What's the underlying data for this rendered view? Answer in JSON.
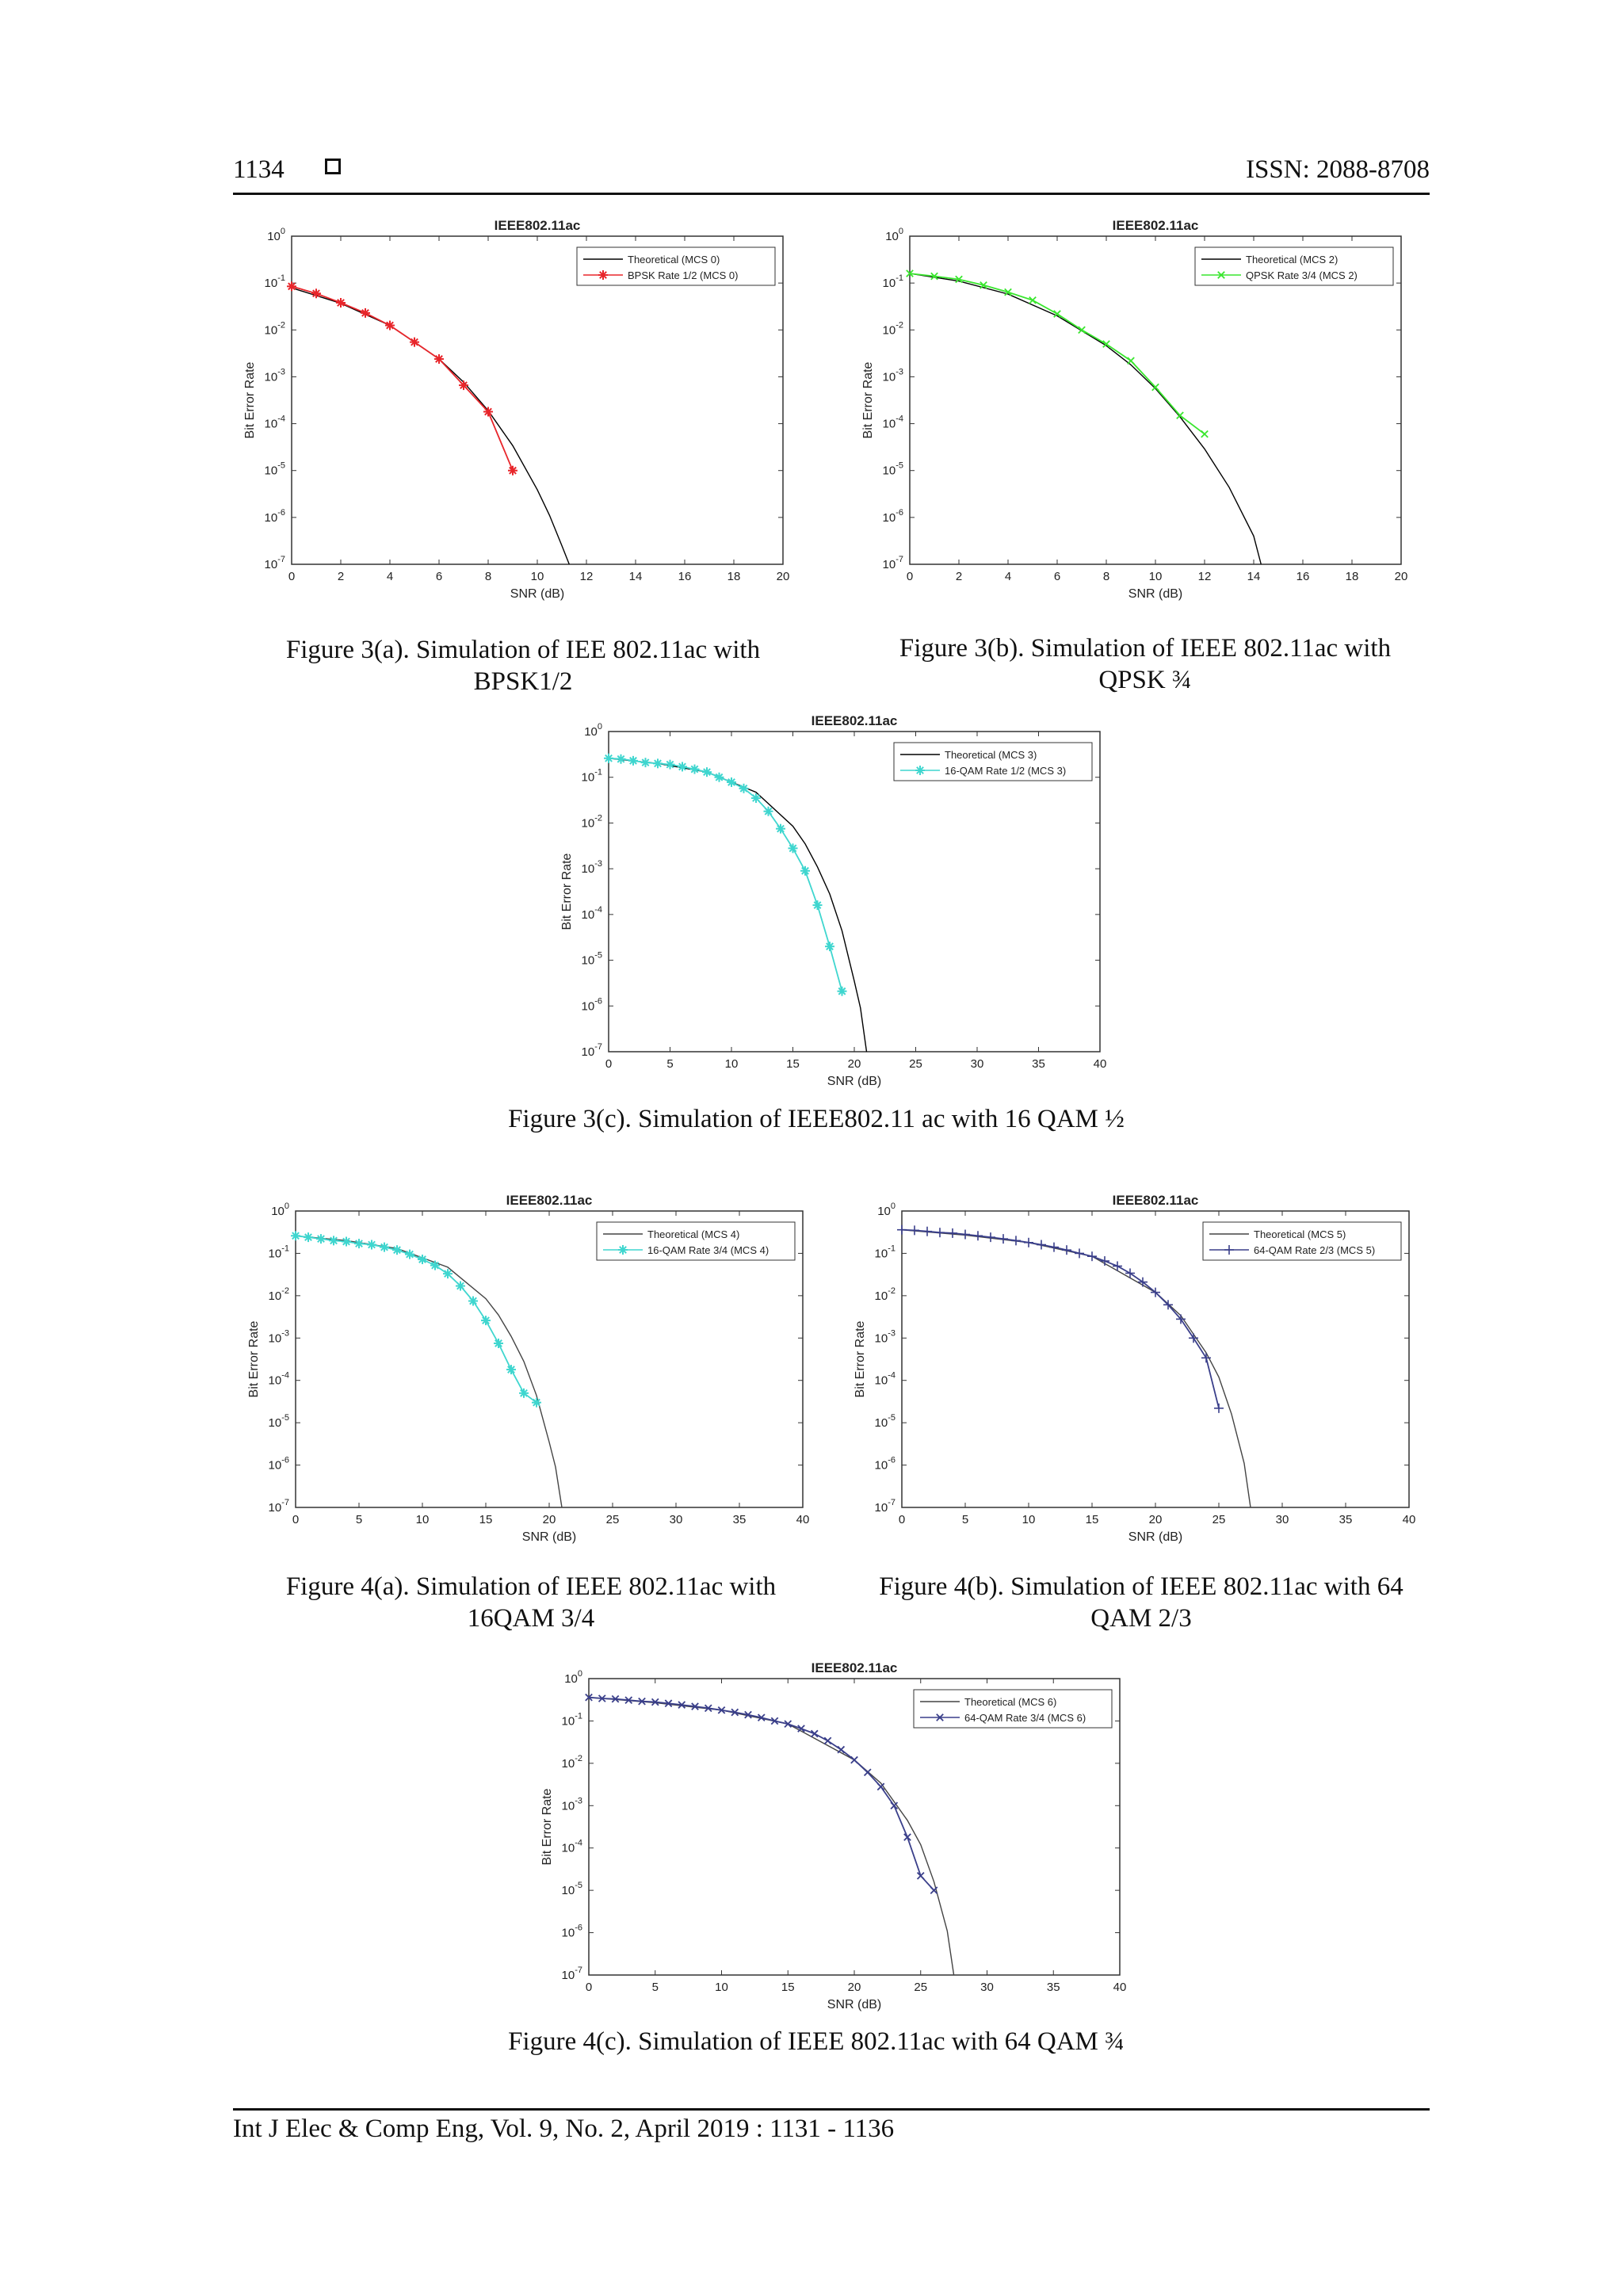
{
  "header": {
    "page_number": "1134",
    "issn": "ISSN: 2088-8708"
  },
  "footer": {
    "citation": "Int J Elec & Comp Eng, Vol. 9, No. 2, April 2019 :  1131 - 1136"
  },
  "captions": {
    "fig3a": "Figure 3(a). Simulation of IEE 802.11ac with BPSK1/2",
    "fig3b": "Figure 3(b). Simulation of IEEE 802.11ac with QPSK ¾",
    "fig3c": "Figure 3(c). Simulation of IEEE802.11 ac with 16 QAM ½",
    "fig4a": "Figure 4(a). Simulation of IEEE 802.11ac with 16QAM 3/4",
    "fig4b": "Figure 4(b). Simulation of IEEE 802.11ac with 64 QAM 2/3",
    "fig4c": "Figure 4(c). Simulation of IEEE 802.11ac with 64 QAM ¾"
  },
  "chart_data": [
    {
      "id": "fig3a",
      "type": "line",
      "title": "IEEE802.11ac",
      "xlabel": "SNR (dB)",
      "ylabel": "Bit Error Rate",
      "xlim": [
        0,
        20
      ],
      "ylim_exp": [
        -7,
        0
      ],
      "yscale": "log",
      "xticks": [
        0,
        2,
        4,
        6,
        8,
        10,
        12,
        14,
        16,
        18,
        20
      ],
      "yticks": [
        "10^0",
        "10^-1",
        "10^-2",
        "10^-3",
        "10^-4",
        "10^-5",
        "10^-6",
        "10^-7"
      ],
      "legend_position": "top-right",
      "series": [
        {
          "name": "Theoretical (MCS 0)",
          "color": "#000000",
          "marker": "none",
          "x": [
            0,
            2,
            4,
            6,
            7,
            8,
            9,
            10,
            10.5,
            11,
            11.3
          ],
          "y": [
            0.079,
            0.037,
            0.0125,
            0.0024,
            0.00077,
            0.00019,
            3.4e-05,
            3.9e-06,
            1.1e-06,
            2.5e-07,
            1e-07
          ]
        },
        {
          "name": "BPSK Rate 1/2 (MCS 0)",
          "color": "#e8262b",
          "marker": "star",
          "x": [
            0,
            1,
            2,
            3,
            4,
            5,
            6,
            7,
            8,
            9
          ],
          "y": [
            0.085,
            0.06,
            0.038,
            0.023,
            0.0125,
            0.0055,
            0.0024,
            0.00066,
            0.00018,
            1e-05
          ]
        }
      ]
    },
    {
      "id": "fig3b",
      "type": "line",
      "title": "IEEE802.11ac",
      "xlabel": "SNR (dB)",
      "ylabel": "Bit Error Rate",
      "xlim": [
        0,
        20
      ],
      "ylim_exp": [
        -7,
        0
      ],
      "yscale": "log",
      "xticks": [
        0,
        2,
        4,
        6,
        8,
        10,
        12,
        14,
        16,
        18,
        20
      ],
      "yticks": [
        "10^0",
        "10^-1",
        "10^-2",
        "10^-3",
        "10^-4",
        "10^-5",
        "10^-6",
        "10^-7"
      ],
      "legend_position": "top-right",
      "series": [
        {
          "name": "Theoretical (MCS 2)",
          "color": "#000000",
          "marker": "none",
          "x": [
            0,
            2,
            4,
            6,
            8,
            9,
            10,
            11,
            12,
            13,
            14,
            14.3
          ],
          "y": [
            0.16,
            0.11,
            0.058,
            0.02,
            0.0046,
            0.0018,
            0.00056,
            0.00014,
            2.9e-05,
            4.4e-06,
            4e-07,
            1e-07
          ]
        },
        {
          "name": "QPSK Rate 3/4 (MCS 2)",
          "color": "#39e62e",
          "marker": "x",
          "x": [
            0,
            1,
            2,
            3,
            4,
            5,
            6,
            7,
            8,
            9,
            10,
            11,
            12
          ],
          "y": [
            0.16,
            0.14,
            0.12,
            0.09,
            0.064,
            0.043,
            0.022,
            0.01,
            0.005,
            0.0022,
            0.0006,
            0.00015,
            6e-05
          ]
        }
      ]
    },
    {
      "id": "fig3c",
      "type": "line",
      "title": "IEEE802.11ac",
      "xlabel": "SNR (dB)",
      "ylabel": "Bit Error Rate",
      "xlim": [
        0,
        40
      ],
      "ylim_exp": [
        -7,
        0
      ],
      "yscale": "log",
      "xticks": [
        0,
        5,
        10,
        15,
        20,
        25,
        30,
        35,
        40
      ],
      "yticks": [
        "10^0",
        "10^-1",
        "10^-2",
        "10^-3",
        "10^-4",
        "10^-5",
        "10^-6",
        "10^-7"
      ],
      "legend_position": "top-right",
      "series": [
        {
          "name": "Theoretical (MCS 3)",
          "color": "#000000",
          "marker": "none",
          "x": [
            0,
            4,
            8,
            12,
            15,
            16,
            17,
            18,
            19,
            20,
            20.5,
            21
          ],
          "y": [
            0.26,
            0.2,
            0.13,
            0.047,
            0.0085,
            0.0035,
            0.0011,
            0.00028,
            4.4e-05,
            3.5e-06,
            9e-07,
            1e-07
          ]
        },
        {
          "name": "16-QAM Rate 1/2 (MCS 3)",
          "color": "#3fd6cf",
          "marker": "star",
          "x": [
            0,
            1,
            2,
            3,
            4,
            5,
            6,
            7,
            8,
            9,
            10,
            11,
            12,
            13,
            14,
            15,
            16,
            17,
            18,
            19
          ],
          "y": [
            0.26,
            0.25,
            0.23,
            0.21,
            0.2,
            0.19,
            0.17,
            0.15,
            0.13,
            0.1,
            0.078,
            0.057,
            0.035,
            0.018,
            0.0075,
            0.0028,
            0.0009,
            0.00016,
            2e-05,
            2.1e-06
          ]
        }
      ]
    },
    {
      "id": "fig4a",
      "type": "line",
      "title": "IEEE802.11ac",
      "xlabel": "SNR (dB)",
      "ylabel": "Bit Error Rate",
      "xlim": [
        0,
        40
      ],
      "ylim_exp": [
        -7,
        0
      ],
      "yscale": "log",
      "xticks": [
        0,
        5,
        10,
        15,
        20,
        25,
        30,
        35,
        40
      ],
      "yticks": [
        "10^0",
        "10^-1",
        "10^-2",
        "10^-3",
        "10^-4",
        "10^-5",
        "10^-6",
        "10^-7"
      ],
      "legend_position": "top-right",
      "series": [
        {
          "name": "Theoretical (MCS 4)",
          "color": "#444444",
          "marker": "none",
          "x": [
            0,
            4,
            8,
            12,
            15,
            16,
            17,
            18,
            19,
            20,
            20.5,
            21
          ],
          "y": [
            0.26,
            0.2,
            0.13,
            0.047,
            0.0085,
            0.0035,
            0.0011,
            0.00028,
            4.4e-05,
            3.5e-06,
            9e-07,
            1e-07
          ]
        },
        {
          "name": "16-QAM Rate 3/4 (MCS 4)",
          "color": "#3fd6cf",
          "marker": "star",
          "x": [
            0,
            1,
            2,
            3,
            4,
            5,
            6,
            7,
            8,
            9,
            10,
            11,
            12,
            13,
            14,
            15,
            16,
            17,
            18,
            19
          ],
          "y": [
            0.26,
            0.24,
            0.22,
            0.2,
            0.19,
            0.17,
            0.16,
            0.14,
            0.12,
            0.095,
            0.072,
            0.052,
            0.033,
            0.017,
            0.0075,
            0.0026,
            0.00075,
            0.00018,
            5e-05,
            3e-05
          ]
        }
      ]
    },
    {
      "id": "fig4b",
      "type": "line",
      "title": "IEEE802.11ac",
      "xlabel": "SNR (dB)",
      "ylabel": "Bit Error Rate",
      "xlim": [
        0,
        40
      ],
      "ylim_exp": [
        -7,
        0
      ],
      "yscale": "log",
      "xticks": [
        0,
        5,
        10,
        15,
        20,
        25,
        30,
        35,
        40
      ],
      "yticks": [
        "10^0",
        "10^-1",
        "10^-2",
        "10^-3",
        "10^-4",
        "10^-5",
        "10^-6",
        "10^-7"
      ],
      "legend_position": "top-right",
      "series": [
        {
          "name": "Theoretical (MCS 5)",
          "color": "#444444",
          "marker": "none",
          "x": [
            0,
            5,
            10,
            15,
            20,
            22,
            24,
            25,
            26,
            27,
            27.5
          ],
          "y": [
            0.36,
            0.27,
            0.18,
            0.085,
            0.012,
            0.0034,
            0.00045,
            0.00012,
            1.6e-05,
            1.1e-06,
            1e-07
          ]
        },
        {
          "name": "64-QAM Rate 2/3 (MCS 5)",
          "color": "#3a3f8a",
          "marker": "plus",
          "x": [
            0,
            1,
            2,
            3,
            4,
            5,
            6,
            7,
            8,
            9,
            10,
            11,
            12,
            13,
            14,
            15,
            16,
            17,
            18,
            19,
            20,
            21,
            22,
            23,
            24,
            25
          ],
          "y": [
            0.36,
            0.35,
            0.33,
            0.31,
            0.3,
            0.28,
            0.26,
            0.24,
            0.22,
            0.2,
            0.18,
            0.16,
            0.14,
            0.12,
            0.1,
            0.085,
            0.066,
            0.05,
            0.034,
            0.021,
            0.012,
            0.0061,
            0.0028,
            0.001,
            0.00034,
            2.2e-05
          ]
        }
      ]
    },
    {
      "id": "fig4c",
      "type": "line",
      "title": "IEEE802.11ac",
      "xlabel": "SNR (dB)",
      "ylabel": "Bit Error Rate",
      "xlim": [
        0,
        40
      ],
      "ylim_exp": [
        -7,
        0
      ],
      "yscale": "log",
      "xticks": [
        0,
        5,
        10,
        15,
        20,
        25,
        30,
        35,
        40
      ],
      "yticks": [
        "10^0",
        "10^-1",
        "10^-2",
        "10^-3",
        "10^-4",
        "10^-5",
        "10^-6",
        "10^-7"
      ],
      "legend_position": "top-right",
      "series": [
        {
          "name": "Theoretical (MCS 6)",
          "color": "#444444",
          "marker": "none",
          "x": [
            0,
            5,
            10,
            15,
            20,
            22,
            24,
            25,
            26,
            27,
            27.5
          ],
          "y": [
            0.36,
            0.27,
            0.18,
            0.085,
            0.012,
            0.0034,
            0.00045,
            0.00012,
            1.6e-05,
            1.1e-06,
            1e-07
          ]
        },
        {
          "name": "64-QAM Rate 3/4 (MCS 6)",
          "color": "#3a3f8a",
          "marker": "x",
          "x": [
            0,
            1,
            2,
            3,
            4,
            5,
            6,
            7,
            8,
            9,
            10,
            11,
            12,
            13,
            14,
            15,
            16,
            17,
            18,
            19,
            20,
            21,
            22,
            23,
            24,
            25,
            26
          ],
          "y": [
            0.36,
            0.34,
            0.33,
            0.31,
            0.29,
            0.28,
            0.26,
            0.24,
            0.22,
            0.2,
            0.18,
            0.16,
            0.14,
            0.12,
            0.1,
            0.085,
            0.066,
            0.05,
            0.034,
            0.021,
            0.012,
            0.0061,
            0.0028,
            0.001,
            0.00018,
            2.2e-05,
            1e-05
          ]
        }
      ]
    }
  ]
}
